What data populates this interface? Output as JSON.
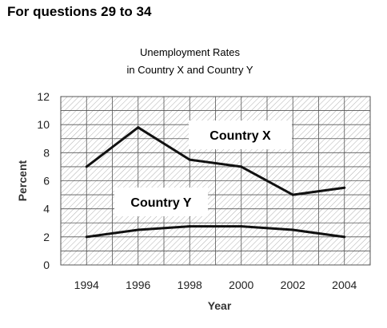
{
  "heading": "For questions 29 to 34",
  "chart_data": {
    "type": "line",
    "title_line1": "Unemployment Rates",
    "title_line2": "in Country X and Country Y",
    "xlabel": "Year",
    "ylabel": "Percent",
    "x": [
      1994,
      1996,
      1998,
      2000,
      2002,
      2004
    ],
    "ylim": [
      0,
      12
    ],
    "yticks": [
      0,
      2,
      4,
      6,
      8,
      10,
      12
    ],
    "grid": true,
    "series": [
      {
        "name": "Country X",
        "values": [
          7,
          9.8,
          7.5,
          7,
          5,
          5.5
        ]
      },
      {
        "name": "Country Y",
        "values": [
          2,
          2.5,
          2.75,
          2.75,
          2.5,
          2
        ]
      }
    ],
    "colors": {
      "line": "#111111",
      "grid": "#555555",
      "hatch": "#b0b0b0"
    }
  }
}
